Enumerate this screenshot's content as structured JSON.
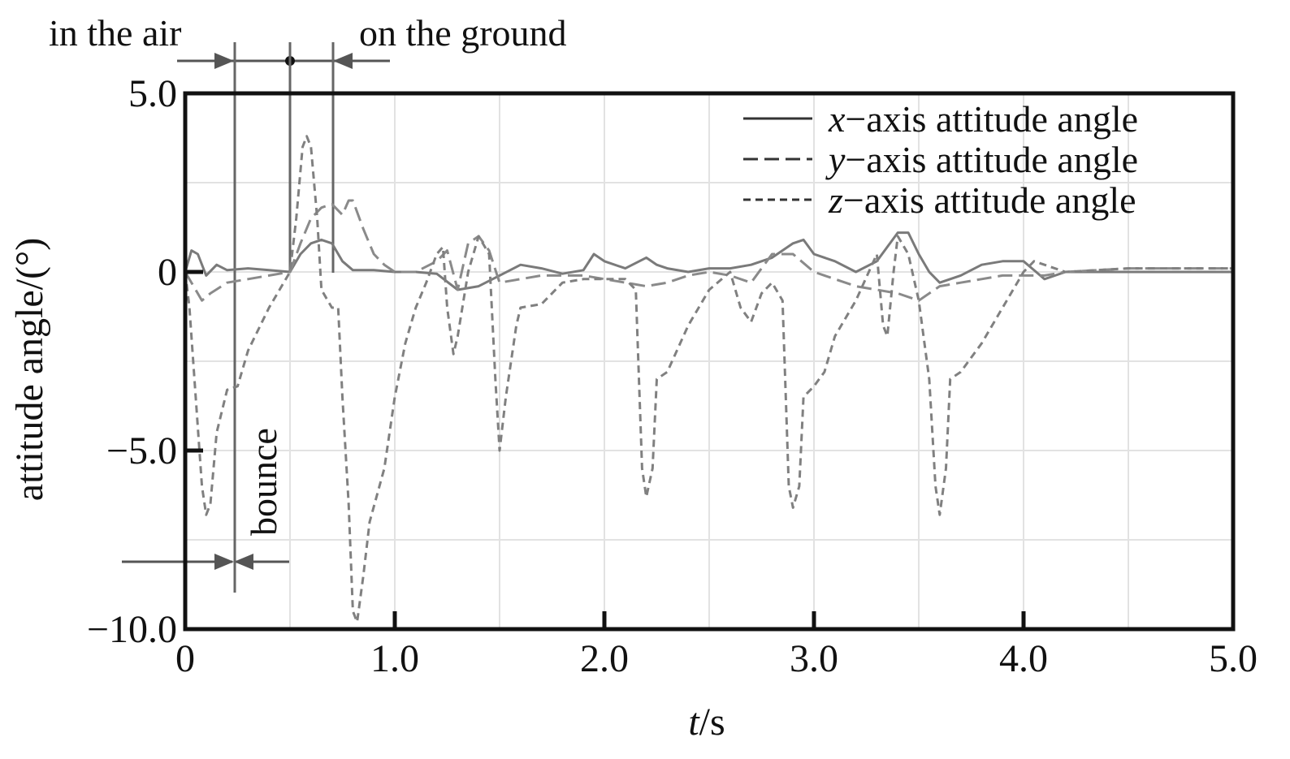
{
  "chart_data": {
    "type": "line",
    "xlabel": "t/s",
    "ylabel": "attitude angle/(°)",
    "xlim": [
      0,
      5
    ],
    "ylim": [
      -10,
      5
    ],
    "x_ticks": [
      0,
      1,
      2,
      3,
      4,
      5
    ],
    "x_tick_labels": [
      "0",
      "1.0",
      "2.0",
      "3.0",
      "4.0",
      "5.0"
    ],
    "y_ticks": [
      5,
      0,
      -5,
      -10
    ],
    "y_tick_labels": [
      "5.0",
      "0",
      "−5.0",
      "−10.0"
    ],
    "grid": true,
    "legend_position": "top-right",
    "series": [
      {
        "name": "x−axis attitude angle",
        "style": "solid",
        "color": "#7a7a7a",
        "points": [
          [
            0,
            0
          ],
          [
            0.03,
            0.6
          ],
          [
            0.06,
            0.5
          ],
          [
            0.1,
            -0.1
          ],
          [
            0.15,
            0.2
          ],
          [
            0.2,
            0.05
          ],
          [
            0.3,
            0.1
          ],
          [
            0.4,
            0.05
          ],
          [
            0.5,
            0
          ],
          [
            0.55,
            0.5
          ],
          [
            0.6,
            0.8
          ],
          [
            0.65,
            0.9
          ],
          [
            0.7,
            0.8
          ],
          [
            0.75,
            0.3
          ],
          [
            0.8,
            0.05
          ],
          [
            0.9,
            0.05
          ],
          [
            1.0,
            0
          ],
          [
            1.1,
            0
          ],
          [
            1.2,
            -0.05
          ],
          [
            1.3,
            -0.5
          ],
          [
            1.4,
            -0.4
          ],
          [
            1.5,
            -0.1
          ],
          [
            1.6,
            0.2
          ],
          [
            1.7,
            0.1
          ],
          [
            1.8,
            -0.05
          ],
          [
            1.9,
            0.05
          ],
          [
            1.95,
            0.5
          ],
          [
            2.0,
            0.3
          ],
          [
            2.1,
            0.1
          ],
          [
            2.2,
            0.4
          ],
          [
            2.25,
            0.2
          ],
          [
            2.3,
            0.1
          ],
          [
            2.4,
            0
          ],
          [
            2.5,
            0.1
          ],
          [
            2.6,
            0.1
          ],
          [
            2.7,
            0.2
          ],
          [
            2.8,
            0.4
          ],
          [
            2.9,
            0.8
          ],
          [
            2.95,
            0.9
          ],
          [
            3.0,
            0.5
          ],
          [
            3.1,
            0.3
          ],
          [
            3.2,
            0
          ],
          [
            3.3,
            0.3
          ],
          [
            3.4,
            1.1
          ],
          [
            3.45,
            1.1
          ],
          [
            3.5,
            0.5
          ],
          [
            3.55,
            0
          ],
          [
            3.6,
            -0.3
          ],
          [
            3.7,
            -0.1
          ],
          [
            3.8,
            0.2
          ],
          [
            3.9,
            0.3
          ],
          [
            4.0,
            0.3
          ],
          [
            4.1,
            -0.2
          ],
          [
            4.2,
            0
          ],
          [
            4.5,
            0
          ],
          [
            5.0,
            0
          ]
        ]
      },
      {
        "name": "y−axis attitude angle",
        "style": "dashed",
        "color": "#8a8a8a",
        "points": [
          [
            0,
            0
          ],
          [
            0.03,
            -0.3
          ],
          [
            0.08,
            -0.8
          ],
          [
            0.12,
            -0.6
          ],
          [
            0.2,
            -0.3
          ],
          [
            0.3,
            -0.2
          ],
          [
            0.4,
            -0.1
          ],
          [
            0.5,
            0
          ],
          [
            0.55,
            0.8
          ],
          [
            0.6,
            1.5
          ],
          [
            0.65,
            1.8
          ],
          [
            0.7,
            1.9
          ],
          [
            0.75,
            1.6
          ],
          [
            0.78,
            2.0
          ],
          [
            0.8,
            2.0
          ],
          [
            0.85,
            1.2
          ],
          [
            0.9,
            0.5
          ],
          [
            0.95,
            0.2
          ],
          [
            1.0,
            0
          ],
          [
            1.1,
            0
          ],
          [
            1.2,
            0.3
          ],
          [
            1.25,
            0.6
          ],
          [
            1.3,
            -0.5
          ],
          [
            1.35,
            0.8
          ],
          [
            1.4,
            1.0
          ],
          [
            1.45,
            0.6
          ],
          [
            1.5,
            -0.3
          ],
          [
            1.6,
            -0.2
          ],
          [
            1.7,
            -0.1
          ],
          [
            1.8,
            -0.1
          ],
          [
            1.9,
            -0.1
          ],
          [
            2.0,
            -0.2
          ],
          [
            2.1,
            -0.3
          ],
          [
            2.2,
            -0.4
          ],
          [
            2.3,
            -0.3
          ],
          [
            2.4,
            -0.1
          ],
          [
            2.5,
            0
          ],
          [
            2.6,
            -0.1
          ],
          [
            2.7,
            -0.3
          ],
          [
            2.8,
            0.5
          ],
          [
            2.9,
            0.5
          ],
          [
            3.0,
            0
          ],
          [
            3.1,
            -0.2
          ],
          [
            3.2,
            -0.4
          ],
          [
            3.3,
            -0.5
          ],
          [
            3.4,
            -0.6
          ],
          [
            3.5,
            -0.8
          ],
          [
            3.6,
            -0.4
          ],
          [
            3.7,
            -0.3
          ],
          [
            3.8,
            -0.2
          ],
          [
            3.9,
            -0.1
          ],
          [
            4.0,
            -0.1
          ],
          [
            4.1,
            -0.1
          ],
          [
            4.2,
            0
          ],
          [
            4.5,
            0.1
          ],
          [
            5.0,
            0.1
          ]
        ]
      },
      {
        "name": "z−axis attitude angle",
        "style": "short-dashed",
        "color": "#808080",
        "points": [
          [
            0,
            0
          ],
          [
            0.02,
            -1.0
          ],
          [
            0.05,
            -3.5
          ],
          [
            0.08,
            -6.0
          ],
          [
            0.1,
            -6.8
          ],
          [
            0.12,
            -6.5
          ],
          [
            0.15,
            -4.5
          ],
          [
            0.2,
            -3.3
          ],
          [
            0.25,
            -3.2
          ],
          [
            0.3,
            -2.2
          ],
          [
            0.4,
            -1.0
          ],
          [
            0.5,
            0
          ],
          [
            0.53,
            1.5
          ],
          [
            0.56,
            3.5
          ],
          [
            0.58,
            3.8
          ],
          [
            0.6,
            3.5
          ],
          [
            0.63,
            1.5
          ],
          [
            0.65,
            -0.5
          ],
          [
            0.7,
            -1.0
          ],
          [
            0.73,
            -1.0
          ],
          [
            0.75,
            -3.5
          ],
          [
            0.78,
            -6.5
          ],
          [
            0.8,
            -9.5
          ],
          [
            0.82,
            -9.8
          ],
          [
            0.85,
            -8.5
          ],
          [
            0.88,
            -7.0
          ],
          [
            0.95,
            -5.5
          ],
          [
            1.0,
            -3.5
          ],
          [
            1.05,
            -2.0
          ],
          [
            1.1,
            -1.0
          ],
          [
            1.15,
            -0.3
          ],
          [
            1.2,
            0.5
          ],
          [
            1.23,
            0.7
          ],
          [
            1.25,
            -1.0
          ],
          [
            1.28,
            -2.3
          ],
          [
            1.3,
            -1.8
          ],
          [
            1.35,
            0
          ],
          [
            1.4,
            1.0
          ],
          [
            1.45,
            0.5
          ],
          [
            1.48,
            -3.0
          ],
          [
            1.5,
            -5.0
          ],
          [
            1.53,
            -3.5
          ],
          [
            1.58,
            -1.5
          ],
          [
            1.6,
            -1.0
          ],
          [
            1.7,
            -0.9
          ],
          [
            1.8,
            -0.3
          ],
          [
            1.9,
            -0.2
          ],
          [
            2.0,
            -0.2
          ],
          [
            2.1,
            -0.2
          ],
          [
            2.15,
            -0.5
          ],
          [
            2.18,
            -5.5
          ],
          [
            2.2,
            -6.3
          ],
          [
            2.23,
            -5.5
          ],
          [
            2.25,
            -3.0
          ],
          [
            2.3,
            -2.8
          ],
          [
            2.4,
            -1.5
          ],
          [
            2.5,
            -0.5
          ],
          [
            2.6,
            0
          ],
          [
            2.65,
            -1.0
          ],
          [
            2.7,
            -1.4
          ],
          [
            2.75,
            -0.6
          ],
          [
            2.8,
            -0.3
          ],
          [
            2.85,
            -0.8
          ],
          [
            2.88,
            -6.0
          ],
          [
            2.9,
            -6.6
          ],
          [
            2.93,
            -6.0
          ],
          [
            2.95,
            -3.5
          ],
          [
            3.0,
            -3.2
          ],
          [
            3.05,
            -2.8
          ],
          [
            3.1,
            -1.8
          ],
          [
            3.2,
            -0.8
          ],
          [
            3.3,
            0.5
          ],
          [
            3.33,
            -1.5
          ],
          [
            3.35,
            -1.8
          ],
          [
            3.38,
            0
          ],
          [
            3.4,
            1.0
          ],
          [
            3.45,
            0.5
          ],
          [
            3.5,
            -0.8
          ],
          [
            3.55,
            -3.0
          ],
          [
            3.58,
            -6.0
          ],
          [
            3.6,
            -6.8
          ],
          [
            3.63,
            -5.5
          ],
          [
            3.65,
            -3.0
          ],
          [
            3.7,
            -2.8
          ],
          [
            3.8,
            -2.0
          ],
          [
            3.9,
            -1.0
          ],
          [
            4.0,
            0
          ],
          [
            4.05,
            0.3
          ],
          [
            4.2,
            0
          ],
          [
            4.5,
            0.1
          ],
          [
            5.0,
            0.1
          ]
        ]
      }
    ],
    "annotations": {
      "in_air": "in the air",
      "on_ground": "on the ground",
      "bounce": "bounce"
    }
  }
}
